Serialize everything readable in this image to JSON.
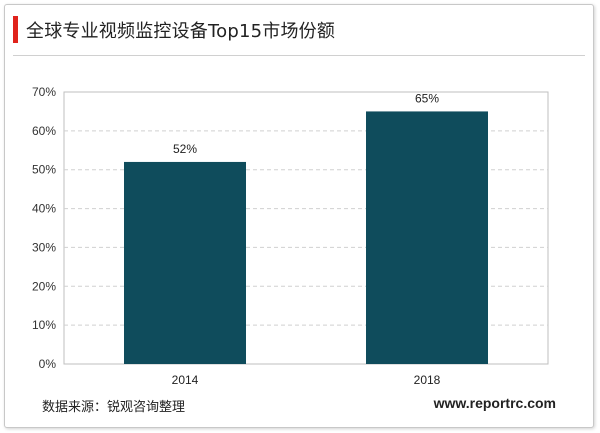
{
  "header": {
    "title": "全球专业视频监控设备Top15市场份额",
    "accent_color": "#e0231c"
  },
  "chart_data": {
    "type": "bar",
    "categories": [
      "2014",
      "2018"
    ],
    "values": [
      52,
      65
    ],
    "data_labels": [
      "52%",
      "65%"
    ],
    "ylim": [
      0,
      70
    ],
    "y_ticks": [
      0,
      10,
      20,
      30,
      40,
      50,
      60,
      70
    ],
    "y_tick_format": "%",
    "bar_color": "#0f4c5c",
    "grid": "dashed horizontal",
    "title": "",
    "xlabel": "",
    "ylabel": ""
  },
  "footer": {
    "source": "数据来源：锐观咨询整理",
    "website": "www.reportrc.com"
  }
}
